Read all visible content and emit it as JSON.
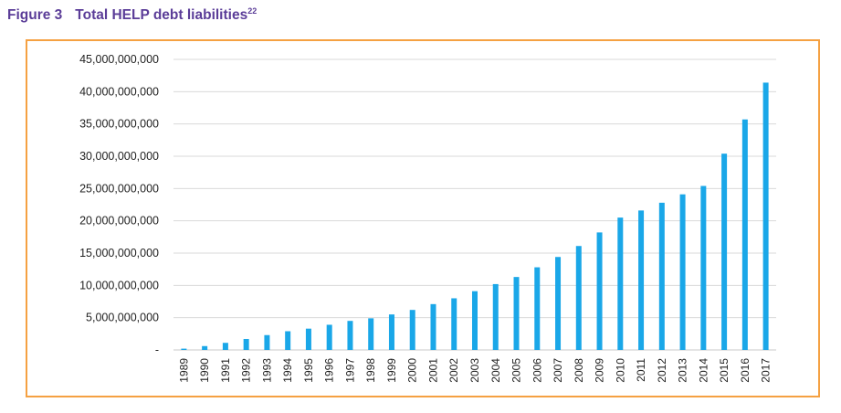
{
  "figure": {
    "number": "Figure 3",
    "title": "Total HELP debt liabilities",
    "footnote": "22",
    "title_color": "#5b3d98",
    "frame_color": "#f5a142"
  },
  "chart_data": {
    "type": "bar",
    "title": "Total HELP debt liabilities",
    "xlabel": "",
    "ylabel": "",
    "ylim": [
      0,
      45000000000
    ],
    "yticks": [
      0,
      5000000000,
      10000000000,
      15000000000,
      20000000000,
      25000000000,
      30000000000,
      35000000000,
      40000000000,
      45000000000
    ],
    "ytick_labels": [
      "-",
      "5,000,000,000",
      "10,000,000,000",
      "15,000,000,000",
      "20,000,000,000",
      "25,000,000,000",
      "30,000,000,000",
      "35,000,000,000",
      "40,000,000,000",
      "45,000,000,000"
    ],
    "grid": true,
    "bar_color": "#1aa7e8",
    "categories": [
      "1989",
      "1990",
      "1991",
      "1992",
      "1993",
      "1994",
      "1995",
      "1996",
      "1997",
      "1998",
      "1999",
      "2000",
      "2001",
      "2002",
      "2003",
      "2004",
      "2005",
      "2006",
      "2007",
      "2008",
      "2009",
      "2010",
      "2011",
      "2012",
      "2013",
      "2014",
      "2015",
      "2016",
      "2017"
    ],
    "values": [
      200000000,
      600000000,
      1100000000,
      1700000000,
      2300000000,
      2900000000,
      3300000000,
      3900000000,
      4500000000,
      4900000000,
      5500000000,
      6200000000,
      7100000000,
      8000000000,
      9100000000,
      10200000000,
      11300000000,
      12800000000,
      14400000000,
      16100000000,
      18200000000,
      20500000000,
      21600000000,
      22800000000,
      24100000000,
      25400000000,
      30400000000,
      35700000000,
      41400000000
    ]
  }
}
